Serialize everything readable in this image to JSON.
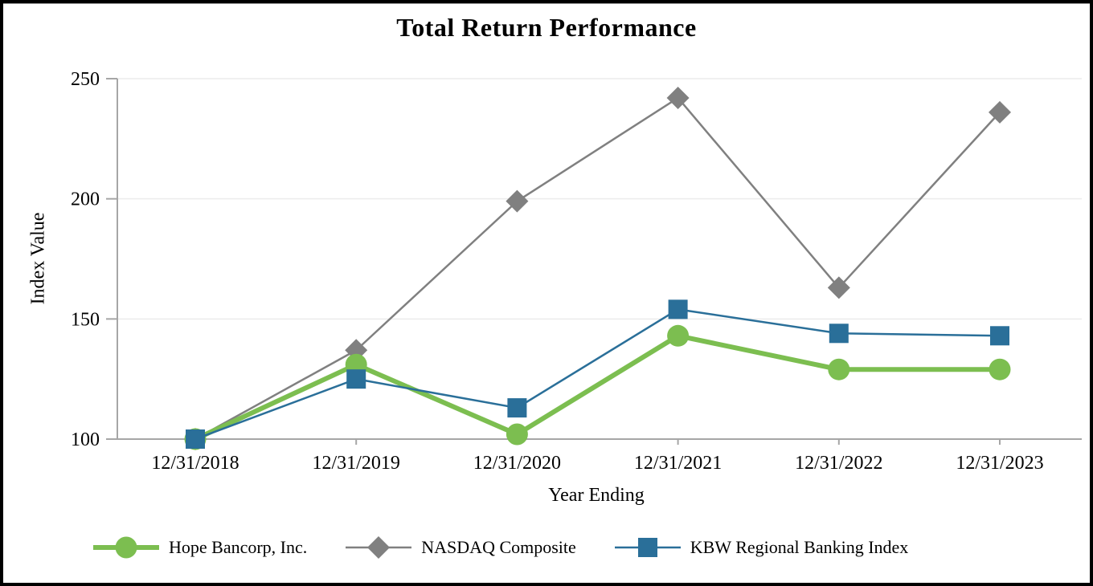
{
  "title": "Total Return Performance",
  "axes": {
    "y_label": "Index Value",
    "x_label": "Year Ending",
    "y_ticks": [
      100,
      150,
      200,
      250
    ]
  },
  "legend": {
    "entries": [
      {
        "label": "Hope Bancorp, Inc.",
        "color": "#7CBE50",
        "marker": "circle"
      },
      {
        "label": "NASDAQ Composite",
        "color": "#808080",
        "marker": "diamond"
      },
      {
        "label": "KBW Regional Banking Index",
        "color": "#2A6F99",
        "marker": "square"
      }
    ]
  },
  "colors": {
    "hope_green": "#7CBE50",
    "nasdaq_gray": "#808080",
    "kbw_blue": "#2A6F99",
    "gridline": "#ECECEC",
    "axis_line": "#A6A6A6",
    "text": "#000000"
  },
  "chart_data": {
    "type": "line",
    "title": "Total Return Performance",
    "xlabel": "Year Ending",
    "ylabel": "Index Value",
    "x": [
      "12/31/2018",
      "12/31/2019",
      "12/31/2020",
      "12/31/2021",
      "12/31/2022",
      "12/31/2023"
    ],
    "series": [
      {
        "name": "Hope Bancorp, Inc.",
        "marker": "circle",
        "color": "#7CBE50",
        "values": [
          100,
          131,
          102,
          143,
          129,
          129
        ]
      },
      {
        "name": "NASDAQ Composite",
        "marker": "diamond",
        "color": "#808080",
        "values": [
          100,
          137,
          199,
          242,
          163,
          236
        ]
      },
      {
        "name": "KBW Regional Banking Index",
        "marker": "square",
        "color": "#2A6F99",
        "values": [
          100,
          125,
          113,
          154,
          144,
          143
        ]
      }
    ],
    "ylim": [
      100,
      250
    ],
    "y_ticks": [
      100,
      150,
      200,
      250
    ],
    "grid": true,
    "legend_position": "bottom"
  }
}
